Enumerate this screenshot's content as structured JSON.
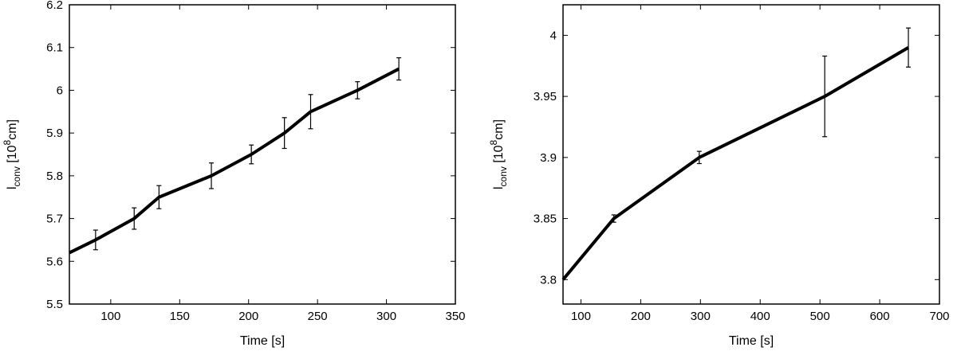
{
  "chart_data": [
    {
      "type": "line",
      "xlabel": "Time [s]",
      "ylabel": {
        "base": "l",
        "sub": "conv",
        "unit_open": " [10",
        "sup": "8",
        "unit_close": "cm]"
      },
      "xlim": [
        70,
        350
      ],
      "ylim": [
        5.5,
        6.2
      ],
      "xticks": [
        100,
        150,
        200,
        250,
        300,
        350
      ],
      "yticks": [
        5.5,
        5.6,
        5.7,
        5.8,
        5.9,
        6.0,
        6.1,
        6.2
      ],
      "xtick_labels": [
        "100",
        "150",
        "200",
        "250",
        "300",
        "350"
      ],
      "ytick_labels": [
        "5.5",
        "5.6",
        "5.7",
        "5.8",
        "5.9",
        "6",
        "6.1",
        "6.2"
      ],
      "grid": false,
      "series": [
        {
          "x": [
            70,
            89,
            117,
            135,
            173,
            202,
            226,
            245,
            279,
            309
          ],
          "y": [
            5.62,
            5.65,
            5.7,
            5.75,
            5.8,
            5.85,
            5.9,
            5.95,
            6.0,
            6.05
          ],
          "err": [
            null,
            0.023,
            0.025,
            0.027,
            0.03,
            0.022,
            0.036,
            0.04,
            0.02,
            0.026
          ],
          "color": "#000000"
        }
      ]
    },
    {
      "type": "line",
      "xlabel": "Time [s]",
      "ylabel": {
        "base": "l",
        "sub": "conv",
        "unit_open": " [10",
        "sup": "8",
        "unit_close": "cm]"
      },
      "xlim": [
        70,
        700
      ],
      "ylim": [
        3.78,
        4.025
      ],
      "xticks": [
        100,
        200,
        300,
        400,
        500,
        600,
        700
      ],
      "yticks": [
        3.8,
        3.85,
        3.9,
        3.95,
        4.0
      ],
      "xtick_labels": [
        "100",
        "200",
        "300",
        "400",
        "500",
        "600",
        "700"
      ],
      "ytick_labels": [
        "3.8",
        "3.85",
        "3.9",
        "3.95",
        "4"
      ],
      "grid": false,
      "series": [
        {
          "x": [
            70,
            155,
            298,
            508,
            648
          ],
          "y": [
            3.8,
            3.85,
            3.9,
            3.95,
            3.99
          ],
          "err": [
            null,
            0.003,
            0.005,
            0.033,
            0.016
          ],
          "color": "#000000"
        }
      ]
    }
  ]
}
